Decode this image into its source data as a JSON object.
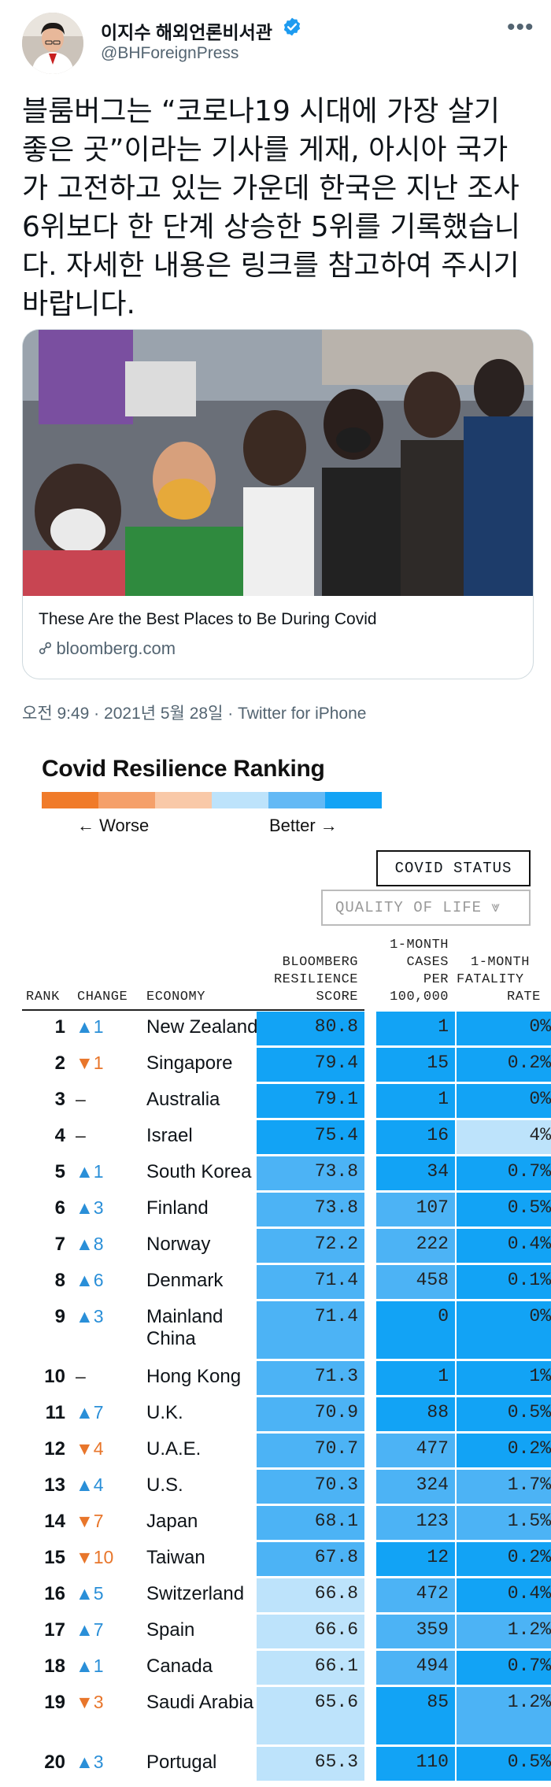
{
  "author": {
    "name": "이지수 해외언론비서관",
    "handle": "@BHForeignPress",
    "avatar_icon": "profile-photo"
  },
  "tweet": {
    "text": "블룸버그는 “코로나19 시대에 가장 살기 좋은 곳”이라는 기사를 게재, 아시아 국가가 고전하고 있는 가운데 한국은 지난 조사 6위보다 한 단계 상승한 5위를 기록했습니다. 자세한 내용은 링크를 참고하여 주시기 바랍니다.",
    "timestamp": "오전 9:49 · 2021년 5월 28일 · Twitter for iPhone"
  },
  "card": {
    "title": "These Are the Best Places to Be During Covid",
    "domain": "bloomberg.com"
  },
  "chart": {
    "title": "Covid Resilience Ranking",
    "worse_label": "← Worse",
    "better_label": "Better →",
    "legend_colors": [
      "#f07b2a",
      "#f5a06a",
      "#f9c9a8",
      "#bde3fb",
      "#63b9f5",
      "#12a3f5"
    ],
    "btn_status": "COVID STATUS",
    "btn_qol": "QUALITY OF LIFE ⩔",
    "headers": {
      "rank": "RANK",
      "change": "CHANGE",
      "economy": "ECONOMY",
      "score": [
        "BLOOMBERG",
        "RESILIENCE",
        "SCORE"
      ],
      "cases": [
        "1-MONTH",
        "CASES",
        "PER",
        "100,000"
      ],
      "fatality": [
        "1-MONTH",
        "FATALITY",
        "RATE"
      ]
    }
  },
  "chart_data": {
    "type": "table",
    "title": "Covid Resilience Ranking",
    "columns": [
      "RANK",
      "CHANGE",
      "ECONOMY",
      "BLOOMBERG RESILIENCE SCORE",
      "1-MONTH CASES PER 100,000",
      "1-MONTH FATALITY RATE"
    ],
    "rows": [
      {
        "rank": "1",
        "change": "▲1",
        "dir": "up",
        "economy": "New Zealand",
        "score": "80.8",
        "cases": "1",
        "fatality": "0%"
      },
      {
        "rank": "2",
        "change": "▼1",
        "dir": "down",
        "economy": "Singapore",
        "score": "79.4",
        "cases": "15",
        "fatality": "0.2%"
      },
      {
        "rank": "3",
        "change": "–",
        "dir": "flat",
        "economy": "Australia",
        "score": "79.1",
        "cases": "1",
        "fatality": "0%"
      },
      {
        "rank": "4",
        "change": "–",
        "dir": "flat",
        "economy": "Israel",
        "score": "75.4",
        "cases": "16",
        "fatality": "4%"
      },
      {
        "rank": "5",
        "change": "▲1",
        "dir": "up",
        "economy": "South Korea",
        "score": "73.8",
        "cases": "34",
        "fatality": "0.7%"
      },
      {
        "rank": "6",
        "change": "▲3",
        "dir": "up",
        "economy": "Finland",
        "score": "73.8",
        "cases": "107",
        "fatality": "0.5%"
      },
      {
        "rank": "7",
        "change": "▲8",
        "dir": "up",
        "economy": "Norway",
        "score": "72.2",
        "cases": "222",
        "fatality": "0.4%"
      },
      {
        "rank": "8",
        "change": "▲6",
        "dir": "up",
        "economy": "Denmark",
        "score": "71.4",
        "cases": "458",
        "fatality": "0.1%"
      },
      {
        "rank": "9",
        "change": "▲3",
        "dir": "up",
        "economy": "Mainland China",
        "score": "71.4",
        "cases": "0",
        "fatality": "0%"
      },
      {
        "rank": "10",
        "change": "–",
        "dir": "flat",
        "economy": "Hong Kong",
        "score": "71.3",
        "cases": "1",
        "fatality": "1%"
      },
      {
        "rank": "11",
        "change": "▲7",
        "dir": "up",
        "economy": "U.K.",
        "score": "70.9",
        "cases": "88",
        "fatality": "0.5%"
      },
      {
        "rank": "12",
        "change": "▼4",
        "dir": "down",
        "economy": "U.A.E.",
        "score": "70.7",
        "cases": "477",
        "fatality": "0.2%"
      },
      {
        "rank": "13",
        "change": "▲4",
        "dir": "up",
        "economy": "U.S.",
        "score": "70.3",
        "cases": "324",
        "fatality": "1.7%"
      },
      {
        "rank": "14",
        "change": "▼7",
        "dir": "down",
        "economy": "Japan",
        "score": "68.1",
        "cases": "123",
        "fatality": "1.5%"
      },
      {
        "rank": "15",
        "change": "▼10",
        "dir": "down",
        "economy": "Taiwan",
        "score": "67.8",
        "cases": "12",
        "fatality": "0.2%"
      },
      {
        "rank": "16",
        "change": "▲5",
        "dir": "up",
        "economy": "Switzerland",
        "score": "66.8",
        "cases": "472",
        "fatality": "0.4%"
      },
      {
        "rank": "17",
        "change": "▲7",
        "dir": "up",
        "economy": "Spain",
        "score": "66.6",
        "cases": "359",
        "fatality": "1.2%"
      },
      {
        "rank": "18",
        "change": "▲1",
        "dir": "up",
        "economy": "Canada",
        "score": "66.1",
        "cases": "494",
        "fatality": "0.7%"
      },
      {
        "rank": "19",
        "change": "▼3",
        "dir": "down",
        "economy": "Saudi Arabia",
        "score": "65.6",
        "cases": "85",
        "fatality": "1.2%"
      },
      {
        "rank": "20",
        "change": "▲3",
        "dir": "up",
        "economy": "Portugal",
        "score": "65.3",
        "cases": "110",
        "fatality": "0.5%"
      }
    ],
    "cell_colors": {
      "score": [
        "#12a3f5",
        "#12a3f5",
        "#12a3f5",
        "#12a3f5",
        "#4cb3f5",
        "#4cb3f5",
        "#4cb3f5",
        "#4cb3f5",
        "#4cb3f5",
        "#4cb3f5",
        "#4cb3f5",
        "#4cb3f5",
        "#4cb3f5",
        "#4cb3f5",
        "#4cb3f5",
        "#bde3fb",
        "#bde3fb",
        "#bde3fb",
        "#bde3fb",
        "#bde3fb"
      ],
      "cases": [
        "#12a3f5",
        "#12a3f5",
        "#12a3f5",
        "#12a3f5",
        "#12a3f5",
        "#4cb3f5",
        "#4cb3f5",
        "#4cb3f5",
        "#12a3f5",
        "#12a3f5",
        "#12a3f5",
        "#4cb3f5",
        "#4cb3f5",
        "#4cb3f5",
        "#12a3f5",
        "#4cb3f5",
        "#4cb3f5",
        "#4cb3f5",
        "#12a3f5",
        "#12a3f5"
      ],
      "fatality": [
        "#12a3f5",
        "#12a3f5",
        "#12a3f5",
        "#bde3fb",
        "#12a3f5",
        "#12a3f5",
        "#12a3f5",
        "#12a3f5",
        "#12a3f5",
        "#12a3f5",
        "#12a3f5",
        "#12a3f5",
        "#4cb3f5",
        "#4cb3f5",
        "#12a3f5",
        "#12a3f5",
        "#4cb3f5",
        "#12a3f5",
        "#4cb3f5",
        "#12a3f5"
      ]
    }
  }
}
